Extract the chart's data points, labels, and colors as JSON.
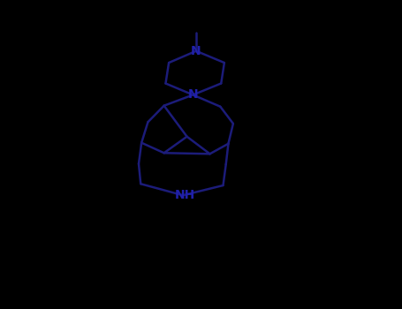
{
  "background_color": "#000000",
  "bond_color": "#1c1c7a",
  "atom_color": "#2020aa",
  "line_width": 1.8,
  "figsize": [
    4.55,
    3.5
  ],
  "dpi": 100,
  "xlim": [
    0.0,
    1.0
  ],
  "ylim": [
    0.0,
    1.0
  ]
}
